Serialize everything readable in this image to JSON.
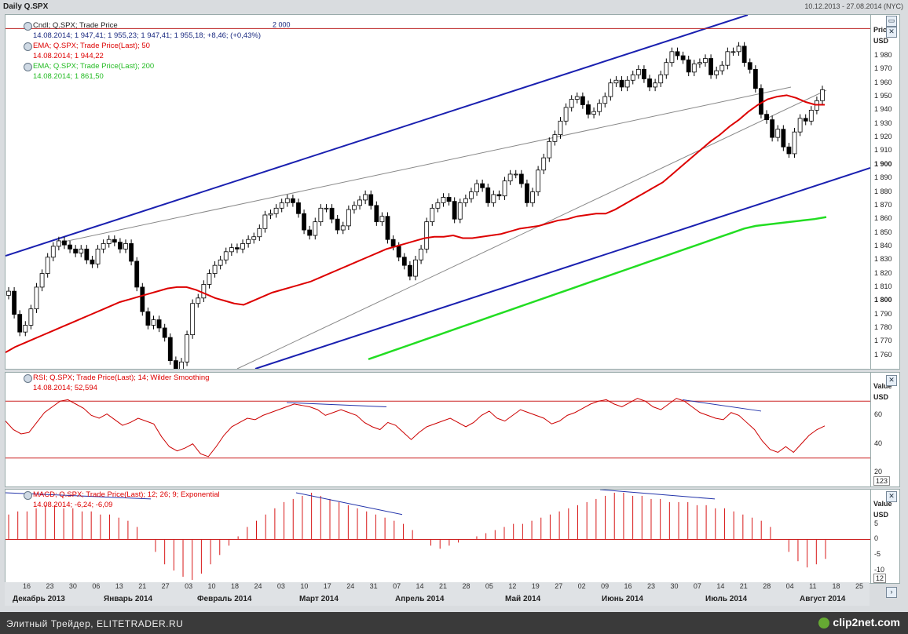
{
  "header": {
    "title": "Daily Q.SPX",
    "range": "10.12.2013 - 27.08.2014 (NYC)"
  },
  "price_panel": {
    "legend": [
      {
        "label": "Cndl; Q.SPX; Trade Price",
        "value": "14.08.2014; 1 947,41; 1 955,23; 1 947,41; 1 955,18; +8,46; (+0,43%)",
        "color": "#222222"
      },
      {
        "label": "EMA; Q.SPX; Trade Price(Last);  50",
        "value": "14.08.2014; 1 944,22",
        "color": "#dd0000"
      },
      {
        "label": "EMA; Q.SPX; Trade Price(Last);  200",
        "value": "14.08.2014; 1 861,50",
        "color": "#22cc22"
      }
    ],
    "axis_title": "Price",
    "axis_unit": "USD",
    "hline_label": "2 000",
    "y_ticks": [
      "1 980",
      "1 970",
      "1 960",
      "1 950",
      "1 940",
      "1 930",
      "1 920",
      "1 910",
      "1 900",
      "1 890",
      "1 880",
      "1 870",
      "1 860",
      "1 850",
      "1 840",
      "1 830",
      "1 820",
      "1 810",
      "1 800",
      "1 790",
      "1 780",
      "1 770",
      "1 760"
    ],
    "y_bold": [
      "1 900",
      "1 800"
    ]
  },
  "rsi_panel": {
    "legend_label": "RSI; Q.SPX; Trade Price(Last);  14; Wilder Smoothing",
    "legend_value": "14.08.2014; 52,594",
    "axis_title": "Value",
    "axis_unit": "USD",
    "y_ticks": [
      "60",
      "40",
      "20"
    ],
    "corner": "123"
  },
  "macd_panel": {
    "legend_label": "MACD; Q.SPX; Trade Price(Last);  12; 26; 9; Exponential",
    "legend_value": "14.08.2014; -6,24; -6,09",
    "axis_title": "Value",
    "axis_unit": "USD",
    "y_ticks": [
      "5",
      "0",
      "-5",
      "-10"
    ],
    "corner": "12"
  },
  "x_axis": {
    "days": [
      "16",
      "23",
      "30",
      "06",
      "13",
      "21",
      "27",
      "03",
      "10",
      "18",
      "24",
      "03",
      "10",
      "17",
      "24",
      "31",
      "07",
      "14",
      "21",
      "28",
      "05",
      "12",
      "19",
      "27",
      "02",
      "09",
      "16",
      "23",
      "30",
      "07",
      "14",
      "21",
      "28",
      "04",
      "11",
      "18",
      "25"
    ],
    "months": [
      "Декабрь 2013",
      "Январь 2014",
      "Февраль 2014",
      "Март 2014",
      "Апрель 2014",
      "Май 2014",
      "Июнь 2014",
      "Июль 2014",
      "Август 2014"
    ]
  },
  "footer": {
    "source": "Элитный Трейдер, ELITETRADER.RU",
    "brand": "clip2net.com"
  },
  "chart_data": {
    "type": "line",
    "title": "Daily Q.SPX",
    "candles_close": [
      1807,
      1790,
      1777,
      1782,
      1794,
      1810,
      1820,
      1832,
      1840,
      1844,
      1841,
      1838,
      1835,
      1838,
      1830,
      1827,
      1838,
      1842,
      1845,
      1843,
      1838,
      1842,
      1829,
      1810,
      1792,
      1782,
      1786,
      1780,
      1773,
      1756,
      1745,
      1755,
      1775,
      1798,
      1802,
      1812,
      1820,
      1826,
      1830,
      1836,
      1839,
      1838,
      1842,
      1845,
      1847,
      1853,
      1863,
      1864,
      1868,
      1872,
      1875,
      1872,
      1864,
      1852,
      1848,
      1858,
      1868,
      1868,
      1860,
      1852,
      1855,
      1867,
      1870,
      1874,
      1878,
      1870,
      1858,
      1862,
      1845,
      1840,
      1832,
      1826,
      1818,
      1830,
      1838,
      1858,
      1868,
      1872,
      1876,
      1873,
      1860,
      1872,
      1875,
      1880,
      1886,
      1883,
      1872,
      1878,
      1877,
      1888,
      1893,
      1893,
      1886,
      1872,
      1880,
      1896,
      1905,
      1917,
      1922,
      1932,
      1942,
      1948,
      1950,
      1944,
      1937,
      1939,
      1945,
      1950,
      1960,
      1962,
      1957,
      1962,
      1966,
      1970,
      1963,
      1957,
      1960,
      1966,
      1975,
      1983,
      1980,
      1977,
      1968,
      1974,
      1975,
      1978,
      1966,
      1969,
      1973,
      1983,
      1983,
      1987,
      1975,
      1970,
      1956,
      1937,
      1933,
      1920,
      1926,
      1913,
      1908,
      1924,
      1934,
      1932,
      1940,
      1947,
      1955
    ],
    "ema50": [
      1762,
      1766,
      1769,
      1772,
      1775,
      1778,
      1781,
      1784,
      1787,
      1790,
      1793,
      1796,
      1799,
      1801,
      1803,
      1805,
      1807,
      1809,
      1810,
      1810,
      1808,
      1805,
      1802,
      1800,
      1798,
      1797,
      1800,
      1803,
      1806,
      1808,
      1810,
      1812,
      1814,
      1817,
      1820,
      1823,
      1826,
      1829,
      1832,
      1835,
      1838,
      1840,
      1842,
      1844,
      1846,
      1847,
      1847,
      1848,
      1846,
      1846,
      1847,
      1848,
      1849,
      1851,
      1853,
      1854,
      1855,
      1857,
      1859,
      1860,
      1862,
      1863,
      1864,
      1864,
      1867,
      1871,
      1875,
      1879,
      1883,
      1887,
      1893,
      1899,
      1905,
      1911,
      1917,
      1922,
      1928,
      1933,
      1939,
      1944,
      1948,
      1950,
      1951,
      1949,
      1946,
      1944,
      1944
    ],
    "ema200": [
      1757,
      1760,
      1763,
      1766,
      1769,
      1772,
      1775,
      1778,
      1781,
      1784,
      1787,
      1790,
      1793,
      1796,
      1799,
      1802,
      1805,
      1808,
      1811,
      1814,
      1817,
      1820,
      1823,
      1826,
      1829,
      1832,
      1835,
      1838,
      1841,
      1844,
      1847,
      1850,
      1853,
      1855,
      1856,
      1857,
      1858,
      1859,
      1860,
      1861.5
    ],
    "rsi": [
      56,
      50,
      47,
      48,
      55,
      62,
      66,
      70,
      71,
      68,
      65,
      60,
      58,
      61,
      57,
      53,
      55,
      58,
      56,
      54,
      45,
      38,
      35,
      37,
      40,
      33,
      31,
      38,
      46,
      52,
      55,
      58,
      57,
      60,
      62,
      64,
      66,
      68,
      67,
      66,
      64,
      60,
      62,
      64,
      62,
      60,
      55,
      52,
      50,
      55,
      53,
      48,
      43,
      48,
      52,
      54,
      56,
      58,
      55,
      52,
      55,
      60,
      63,
      58,
      56,
      60,
      64,
      62,
      60,
      58,
      54,
      56,
      60,
      62,
      65,
      68,
      70,
      71,
      68,
      66,
      69,
      72,
      70,
      66,
      64,
      68,
      72,
      70,
      66,
      62,
      60,
      58,
      57,
      62,
      60,
      55,
      50,
      42,
      36,
      34,
      38,
      34,
      40,
      46,
      50,
      52.6
    ],
    "macd": [
      8,
      9,
      9,
      10,
      11,
      11,
      10,
      10,
      9,
      9,
      8,
      8,
      7,
      6,
      4,
      0,
      -4,
      -8,
      -10,
      -12,
      -13,
      -11,
      -8,
      -5,
      -2,
      1,
      4,
      6,
      8,
      10,
      12,
      13,
      14,
      15,
      14,
      13,
      12,
      11,
      10,
      9,
      8,
      7,
      6,
      5,
      3,
      0,
      -2,
      -3,
      -2,
      -1,
      0,
      1,
      2,
      3,
      4,
      5,
      5,
      6,
      7,
      8,
      9,
      10,
      11,
      12,
      13,
      14,
      15,
      15,
      14,
      14,
      13,
      13,
      12,
      12,
      12,
      11,
      11,
      10,
      10,
      9,
      8,
      7,
      6,
      4,
      0,
      -4,
      -7,
      -9,
      -8,
      -6.24
    ],
    "price_ylim": [
      1750,
      2010
    ],
    "rsi_ylim": [
      10,
      90
    ],
    "macd_ylim": [
      -14,
      16
    ]
  }
}
